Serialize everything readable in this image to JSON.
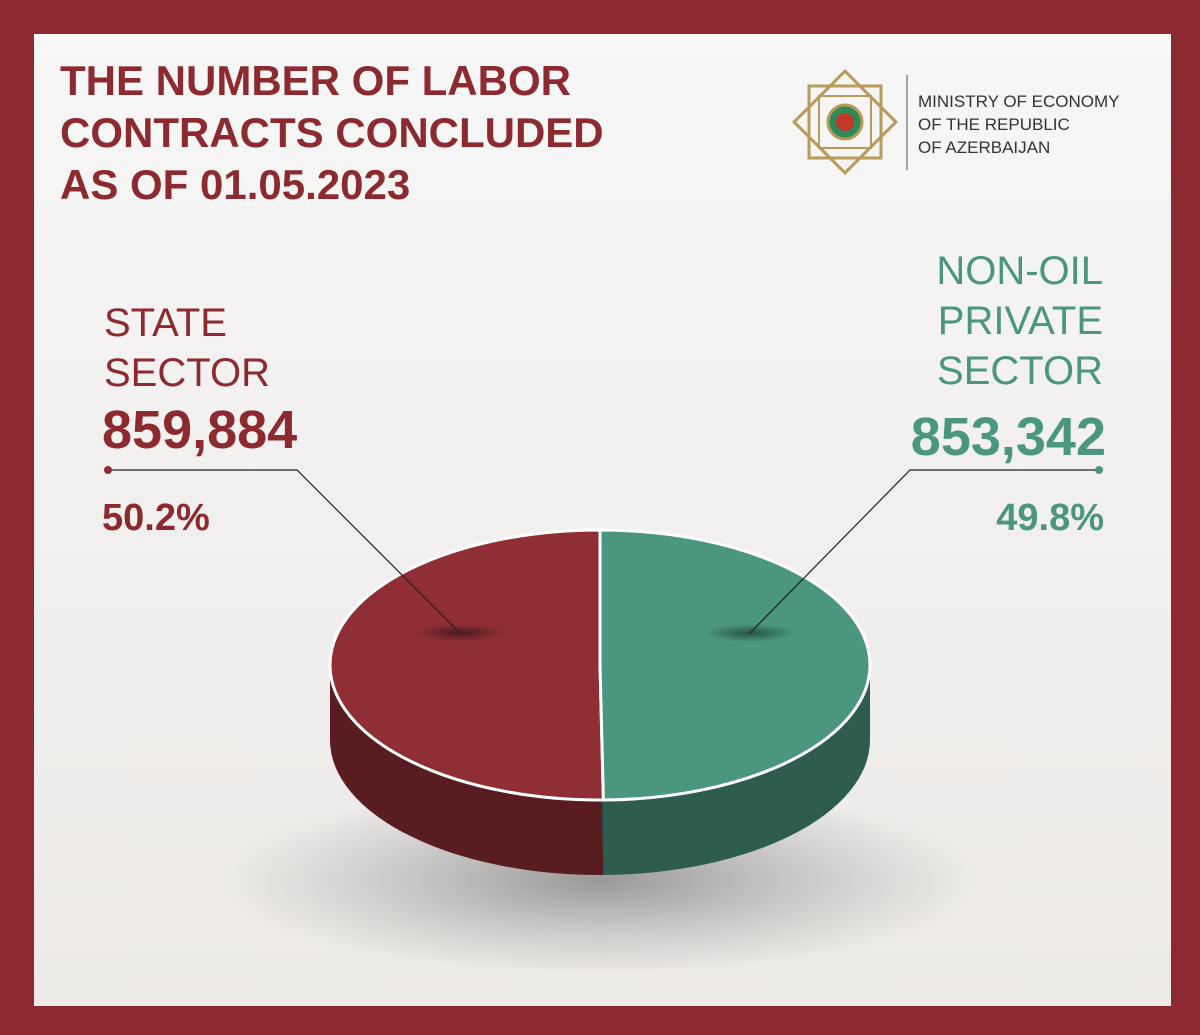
{
  "chart_data": {
    "type": "pie",
    "title": [
      "THE NUMBER OF LABOR",
      "CONTRACTS CONCLUDED",
      "AS OF 01.05.2023"
    ],
    "source": [
      "MINISTRY OF ECONOMY",
      "OF THE REPUBLIC",
      "OF AZERBAIJAN"
    ],
    "categories": [
      "STATE SECTOR",
      "NON-OIL PRIVATE SECTOR"
    ],
    "values": [
      859884,
      853342
    ],
    "value_labels": [
      "859,884",
      "853,342"
    ],
    "percents": [
      50.2,
      49.8
    ],
    "percent_labels": [
      "50.2%",
      "49.8%"
    ],
    "colors": [
      "#8f2f35",
      "#4a967f"
    ]
  }
}
